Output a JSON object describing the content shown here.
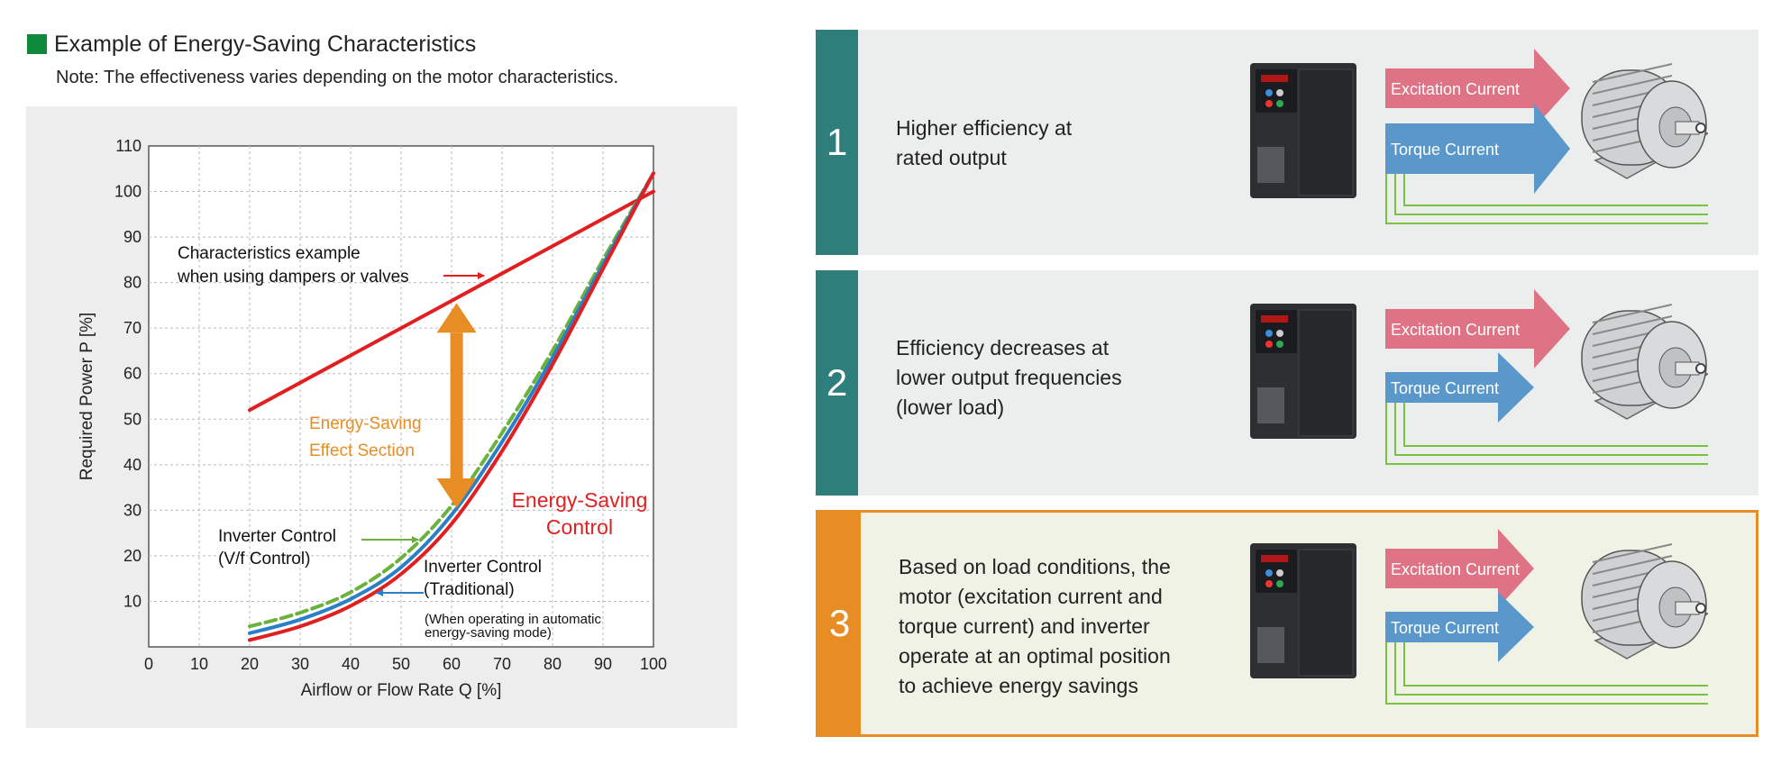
{
  "header": {
    "title": "Example of Energy-Saving Characteristics",
    "note": "Note: The effectiveness varies depending on the motor characteristics."
  },
  "chart_data": {
    "type": "line",
    "xlabel": "Airflow or Flow Rate Q  [%]",
    "ylabel": "Required Power P [%]",
    "xlim": [
      0,
      100
    ],
    "ylim": [
      0,
      110
    ],
    "xticks": [
      0,
      10,
      20,
      30,
      40,
      50,
      60,
      70,
      80,
      90,
      100
    ],
    "yticks": [
      10,
      20,
      30,
      40,
      50,
      60,
      70,
      80,
      90,
      100,
      110
    ],
    "grid": true,
    "series": [
      {
        "color": "#e02020",
        "style": "solid",
        "x": [
          20,
          100
        ],
        "y": [
          52,
          100
        ]
      },
      {
        "color": "#6ab23a",
        "style": "dashed",
        "x": [
          20,
          30,
          40,
          50,
          60,
          70,
          80,
          90,
          100
        ],
        "y": [
          4.5,
          7.5,
          12,
          19.5,
          31,
          47,
          65,
          85,
          104
        ]
      },
      {
        "color": "#2a7fc9",
        "style": "solid",
        "x": [
          20,
          30,
          40,
          50,
          60,
          70,
          80,
          90,
          100
        ],
        "y": [
          3,
          6,
          10.5,
          17.5,
          29,
          45,
          63.5,
          84,
          104
        ]
      },
      {
        "color": "#e02020",
        "style": "solid",
        "x": [
          20,
          30,
          40,
          50,
          60,
          70,
          80,
          90,
          100
        ],
        "y": [
          1.5,
          4.5,
          9,
          16,
          27,
          43,
          62,
          83,
          104
        ]
      }
    ],
    "annotations": [
      {
        "lines": [
          "Characteristics example",
          "when using dampers or valves"
        ],
        "color": "#111111"
      },
      {
        "lines": [
          "Energy-Saving",
          "Effect Section"
        ],
        "color": "#e88d23"
      },
      {
        "lines": [
          "Energy-Saving",
          "Control"
        ],
        "color": "#e02020"
      },
      {
        "lines": [
          "Inverter Control",
          "(V/f Control)"
        ],
        "color": "#111111"
      },
      {
        "lines": [
          "Inverter Control",
          "(Traditional)"
        ],
        "color": "#111111"
      },
      {
        "lines": [
          "(When operating in automatic",
          "energy-saving mode)"
        ],
        "color": "#111111"
      }
    ]
  },
  "steps": [
    {
      "number": "1",
      "description": "Higher efficiency at\nrated output",
      "excitation_label": "Excitation Current",
      "torque_label": "Torque Current",
      "torque_level": "full"
    },
    {
      "number": "2",
      "description": "Efficiency decreases at\nlower output frequencies\n (lower load)",
      "excitation_label": "Excitation Current",
      "torque_label": "Torque Current",
      "torque_level": "reduced"
    },
    {
      "number": "3",
      "description": "Based on load conditions, the\nmotor (excitation current and\ntorque current) and inverter\noperate at an optimal position\nto achieve energy savings",
      "excitation_label": "Excitation Current",
      "torque_label": "Torque Current",
      "torque_level": "reduced-both"
    }
  ],
  "colors": {
    "accent_green": "#0f8a3c",
    "teal": "#2e7e7b",
    "orange": "#e88d23",
    "excitation_arrow": "#df7386",
    "torque_arrow": "#5a98cc",
    "wire": "#7bc043"
  }
}
